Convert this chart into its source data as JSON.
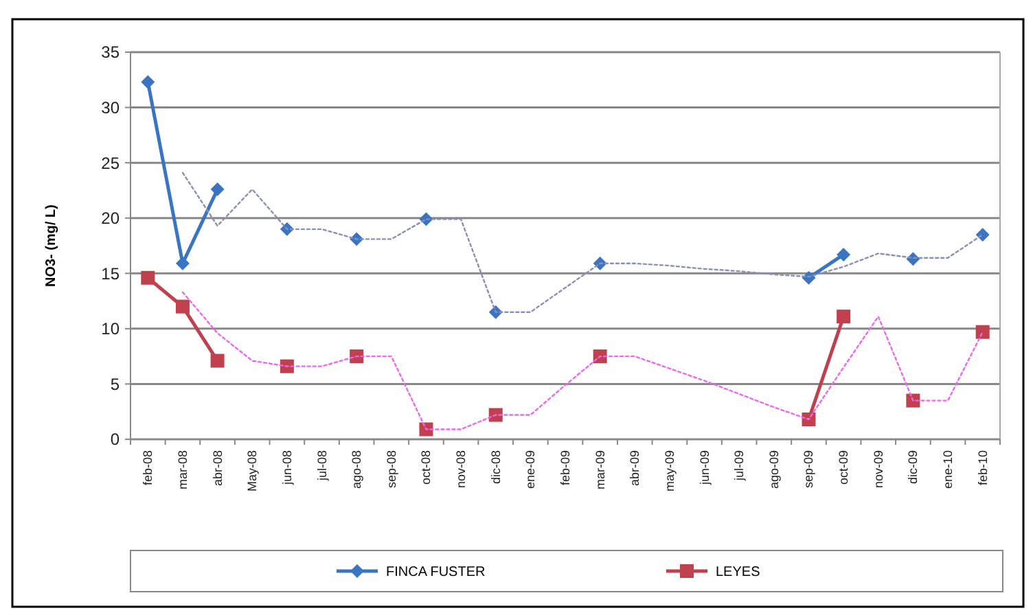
{
  "chart_data": {
    "type": "line",
    "ylabel": "NO3- (mg/ L)",
    "categories": [
      "feb-08",
      "mar-08",
      "abr-08",
      "May-08",
      "jun-08",
      "jul-08",
      "ago-08",
      "sep-08",
      "oct-08",
      "nov-08",
      "dic-08",
      "ene-09",
      "feb-09",
      "mar-09",
      "abr-09",
      "may-09",
      "jun-09",
      "jul-09",
      "ago-09",
      "sep-09",
      "oct-09",
      "nov-09",
      "dic-09",
      "ene-10",
      "feb-10"
    ],
    "series": [
      {
        "name": "FINCA FUSTER",
        "color": "#3a75c4",
        "marker": "diamond",
        "values": [
          32.3,
          15.9,
          22.6,
          null,
          19.0,
          null,
          18.1,
          null,
          19.9,
          null,
          11.5,
          null,
          null,
          15.9,
          null,
          null,
          null,
          null,
          null,
          14.6,
          16.7,
          null,
          16.3,
          null,
          18.5
        ]
      },
      {
        "name": "LEYES",
        "color": "#c0404e",
        "marker": "square",
        "values": [
          14.6,
          12.0,
          7.1,
          null,
          6.6,
          null,
          7.5,
          null,
          0.9,
          null,
          2.2,
          null,
          null,
          7.5,
          null,
          null,
          null,
          null,
          null,
          1.8,
          11.1,
          null,
          3.5,
          null,
          9.7
        ]
      },
      {
        "color": "#8a8fb8",
        "marker": "none",
        "line_style": "dotted",
        "values": [
          null,
          24.1,
          19.3,
          22.6,
          19.0,
          19.0,
          18.1,
          18.1,
          19.9,
          19.9,
          11.5,
          11.5,
          13.7,
          15.9,
          15.9,
          15.7,
          15.4,
          15.2,
          14.9,
          14.7,
          15.6,
          16.8,
          16.4,
          16.4,
          18.5
        ]
      },
      {
        "color": "#ee66ee",
        "marker": "none",
        "line_style": "dotted",
        "values": [
          null,
          13.3,
          9.6,
          7.1,
          6.6,
          6.6,
          7.5,
          7.5,
          0.9,
          0.9,
          2.2,
          2.2,
          4.9,
          7.5,
          7.5,
          6.4,
          5.3,
          4.1,
          2.9,
          1.8,
          6.5,
          11.1,
          3.5,
          3.5,
          9.7
        ]
      }
    ],
    "ylim": [
      0,
      35
    ],
    "yticks": [
      0,
      5,
      10,
      15,
      20,
      25,
      30,
      35
    ],
    "grid": "y",
    "legend": "bottom"
  }
}
